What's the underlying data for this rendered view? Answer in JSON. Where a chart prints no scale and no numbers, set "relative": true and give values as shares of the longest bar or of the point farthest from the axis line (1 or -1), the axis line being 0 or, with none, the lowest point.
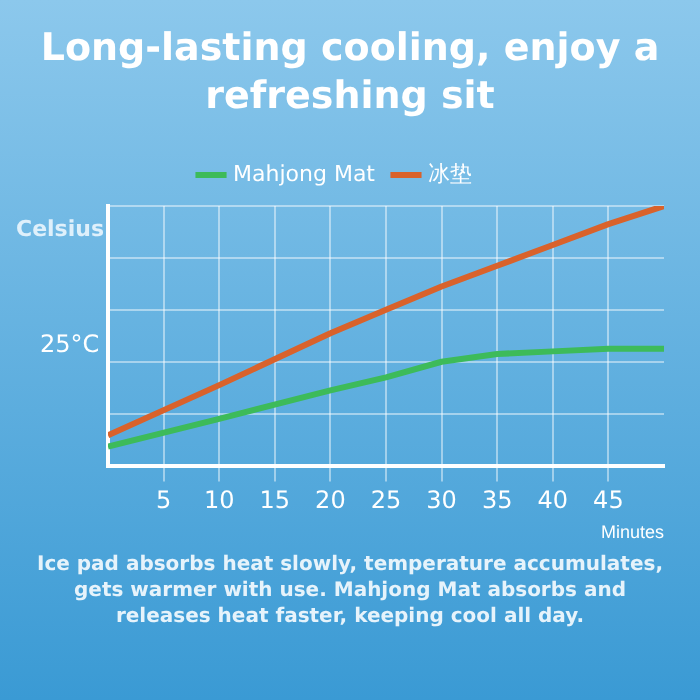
{
  "chart_data": {
    "type": "line",
    "title": "Long-lasting cooling, enjoy a refreshing sit",
    "ylabel": "Celsius",
    "xlabel": "Minutes",
    "relative": true,
    "x": [
      0,
      10,
      20,
      25,
      30,
      35,
      40,
      45,
      50
    ],
    "xlim": [
      0,
      50
    ],
    "xticks": [
      5,
      10,
      15,
      20,
      25,
      30,
      35,
      40,
      45
    ],
    "series": [
      {
        "name": "Mahjong Mat",
        "color": "#3dbb5a",
        "values": [
          0.073,
          0.18,
          0.29,
          0.34,
          0.4,
          0.43,
          0.44,
          0.45,
          0.45
        ]
      },
      {
        "name": "冰垫",
        "color": "#d9622b",
        "values": [
          0.117,
          0.31,
          0.51,
          0.6,
          0.69,
          0.77,
          0.85,
          0.93,
          1
        ]
      }
    ],
    "annotations": [
      "25°C",
      "Ice pad absorbs heat slowly, temperature accumulates, gets warmer with use. Mahjong Mat absorbs and releases heat faster, keeping cool all day."
    ],
    "grid": true,
    "legend": "top",
    "marker": "none",
    "line_style": "solid"
  }
}
